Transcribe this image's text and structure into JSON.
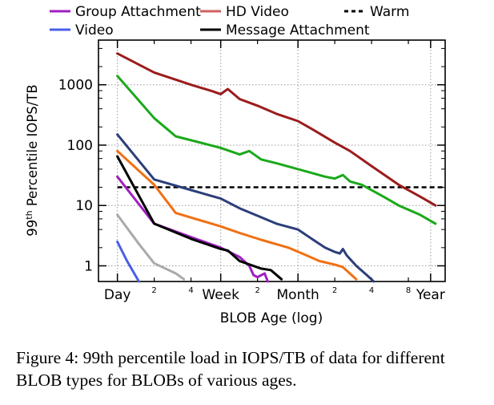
{
  "chart_data": {
    "type": "line",
    "xlabel": "BLOB Age (log)",
    "ylabel": "99th Percentile IOPS/TB",
    "ylabel_main": "99",
    "ylabel_sup": "th",
    "ylabel_rest": " Percentile IOPS/TB",
    "x_scale": "log",
    "y_scale": "log",
    "xlim_days": [
      0.7,
      480
    ],
    "ylim": [
      0.55,
      5500
    ],
    "grid": true,
    "legend_position": "top",
    "x_major_ticks": [
      {
        "label": "Day",
        "value": 1
      },
      {
        "label": "Week",
        "value": 7
      },
      {
        "label": "Month",
        "value": 30
      },
      {
        "label": "Year",
        "value": 365
      }
    ],
    "x_minor_ticks": [
      {
        "label": "2",
        "value": 2
      },
      {
        "label": "4",
        "value": 4
      },
      {
        "label": "2",
        "value": 14
      },
      {
        "label": "2",
        "value": 60
      },
      {
        "label": "4",
        "value": 120
      },
      {
        "label": "8",
        "value": 240
      }
    ],
    "y_ticks": [
      {
        "label": "1",
        "value": 1
      },
      {
        "label": "10",
        "value": 10
      },
      {
        "label": "100",
        "value": 100
      },
      {
        "label": "1000",
        "value": 1000
      }
    ],
    "series": [
      {
        "name": "",
        "color": "#9b1c1c",
        "points": [
          [
            1,
            3300
          ],
          [
            2,
            1600
          ],
          [
            4,
            1000
          ],
          [
            6,
            780
          ],
          [
            7,
            700
          ],
          [
            8,
            850
          ],
          [
            10,
            580
          ],
          [
            14,
            450
          ],
          [
            20,
            330
          ],
          [
            30,
            250
          ],
          [
            40,
            180
          ],
          [
            60,
            110
          ],
          [
            80,
            80
          ],
          [
            120,
            45
          ],
          [
            200,
            22
          ],
          [
            300,
            14
          ],
          [
            400,
            10
          ]
        ]
      },
      {
        "name": "",
        "color": "#1aa91a",
        "points": [
          [
            1,
            1400
          ],
          [
            2,
            280
          ],
          [
            3,
            140
          ],
          [
            7,
            90
          ],
          [
            10,
            70
          ],
          [
            12,
            80
          ],
          [
            15,
            58
          ],
          [
            20,
            50
          ],
          [
            30,
            40
          ],
          [
            50,
            30
          ],
          [
            60,
            28
          ],
          [
            70,
            32
          ],
          [
            80,
            25
          ],
          [
            100,
            22
          ],
          [
            150,
            14
          ],
          [
            200,
            10
          ],
          [
            300,
            7
          ],
          [
            400,
            5
          ]
        ]
      },
      {
        "name": "",
        "color": "#2c3e7a",
        "points": [
          [
            1,
            150
          ],
          [
            2,
            27
          ],
          [
            4,
            18
          ],
          [
            7,
            13
          ],
          [
            10,
            9
          ],
          [
            20,
            5
          ],
          [
            30,
            4
          ],
          [
            40,
            2.7
          ],
          [
            50,
            2
          ],
          [
            60,
            1.7
          ],
          [
            66,
            1.6
          ],
          [
            70,
            1.9
          ],
          [
            75,
            1.5
          ],
          [
            90,
            1
          ],
          [
            110,
            0.7
          ],
          [
            125,
            0.55
          ]
        ]
      },
      {
        "name": "",
        "color": "#f07014",
        "points": [
          [
            1,
            80
          ],
          [
            2,
            22
          ],
          [
            3,
            7.5
          ],
          [
            7,
            4.5
          ],
          [
            10,
            3.5
          ],
          [
            15,
            2.7
          ],
          [
            25,
            2
          ],
          [
            35,
            1.5
          ],
          [
            45,
            1.2
          ],
          [
            60,
            1.05
          ],
          [
            70,
            0.95
          ],
          [
            90,
            0.6
          ]
        ]
      },
      {
        "name": "Group Attachment",
        "color": "#a020c0",
        "points": [
          [
            1,
            30
          ],
          [
            2,
            5
          ],
          [
            4,
            3
          ],
          [
            7,
            2
          ],
          [
            10,
            1.4
          ],
          [
            12,
            1
          ],
          [
            13,
            0.7
          ],
          [
            14,
            0.65
          ],
          [
            16,
            0.75
          ],
          [
            17,
            0.55
          ]
        ]
      },
      {
        "name": "Message Attachment",
        "color": "#000000",
        "points": [
          [
            1,
            65
          ],
          [
            2,
            5
          ],
          [
            4,
            2.8
          ],
          [
            7,
            1.9
          ],
          [
            8,
            1.8
          ],
          [
            10,
            1.2
          ],
          [
            15,
            0.9
          ],
          [
            18,
            0.85
          ],
          [
            22,
            0.6
          ]
        ]
      },
      {
        "name": "",
        "color": "#aaaaaa",
        "points": [
          [
            1,
            7
          ],
          [
            1.5,
            2.3
          ],
          [
            2,
            1.1
          ],
          [
            3,
            0.75
          ],
          [
            3.5,
            0.6
          ]
        ]
      },
      {
        "name": "Video",
        "color": "#4a5ee8",
        "points": [
          [
            1,
            2.5
          ],
          [
            1.2,
            1.2
          ],
          [
            1.5,
            0.55
          ]
        ]
      }
    ],
    "warm_threshold": {
      "name": "Warm",
      "value": 20
    }
  },
  "legend": [
    {
      "label": "Group Attachment",
      "color": "#a020c0",
      "style": "solid"
    },
    {
      "label": "HD Video",
      "color": "#d06060",
      "style": "solid"
    },
    {
      "label": "Warm",
      "color": "#000000",
      "style": "dashed"
    },
    {
      "label": "Video",
      "color": "#4a5ee8",
      "style": "solid"
    },
    {
      "label": "Message Attachment",
      "color": "#000000",
      "style": "solid"
    }
  ],
  "caption": "Figure 4: 99th percentile load in IOPS/TB of data for different BLOB types for BLOBs of various ages."
}
